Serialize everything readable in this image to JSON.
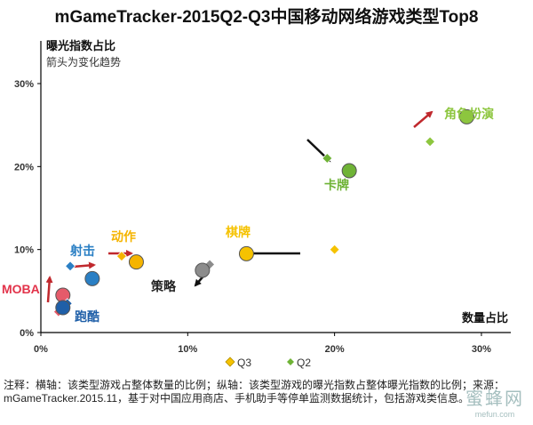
{
  "title": "mGameTracker-2015Q2-Q3中国移动网络游戏类型Top8",
  "note": "注释：横轴：该类型游戏占整体数量的比例；纵轴：该类型游戏的曝光指数占整体曝光指数的比例；来源：mGameTracker.2015.11，基于对中国应用商店、手机助手等停单监测数据统计，包括游戏类信息。",
  "watermark": {
    "main": "蜜蜂网",
    "sub": "mefun.com"
  },
  "chart_data": {
    "type": "scatter",
    "title": "mGameTracker-2015Q2-Q3中国移动网络游戏类型Top8",
    "ylabel": "曝光指数占比",
    "ylabel_sub": "箭头为变化趋势",
    "xlabel": "数量占比",
    "xlim": [
      0,
      32
    ],
    "ylim": [
      0,
      33
    ],
    "x_ticks": [
      0,
      10,
      20,
      30
    ],
    "y_ticks": [
      0,
      10,
      20,
      30
    ],
    "x_tick_labels": [
      "0%",
      "10%",
      "20%",
      "30%"
    ],
    "y_tick_labels": [
      "0%",
      "10%",
      "20%",
      "30%"
    ],
    "legend": [
      "Q3",
      "Q2"
    ],
    "legend_position": "bottom",
    "series": [
      {
        "name": "Q3",
        "marker": "circle",
        "points": [
          {
            "label": "角色扮演",
            "x": 29.0,
            "y": 26.0
          },
          {
            "label": "卡牌",
            "x": 21.0,
            "y": 19.5
          },
          {
            "label": "棋牌",
            "x": 14.0,
            "y": 9.5
          },
          {
            "label": "策略",
            "x": 11.0,
            "y": 7.5
          },
          {
            "label": "动作",
            "x": 6.5,
            "y": 8.5
          },
          {
            "label": "射击",
            "x": 3.5,
            "y": 6.5
          },
          {
            "label": "MOBA",
            "x": 1.5,
            "y": 4.5
          },
          {
            "label": "跑酷",
            "x": 1.5,
            "y": 3.0
          }
        ]
      },
      {
        "name": "Q2",
        "marker": "diamond",
        "points": [
          {
            "label": "角色扮演",
            "x": 26.5,
            "y": 23.0
          },
          {
            "label": "卡牌",
            "x": 19.5,
            "y": 21.0
          },
          {
            "label": "棋牌",
            "x": 20.0,
            "y": 10.0
          },
          {
            "label": "策略",
            "x": 11.5,
            "y": 8.2
          },
          {
            "label": "动作",
            "x": 5.5,
            "y": 9.2
          },
          {
            "label": "射击",
            "x": 2.0,
            "y": 8.0
          },
          {
            "label": "MOBA",
            "x": 1.2,
            "y": 2.5
          },
          {
            "label": "跑酷",
            "x": 1.8,
            "y": 3.5
          }
        ]
      }
    ],
    "categories": [
      {
        "name": "角色扮演",
        "color": "#8dc63f",
        "arrow": "#c0282d"
      },
      {
        "name": "卡牌",
        "color": "#6fb336",
        "arrow": "#111111"
      },
      {
        "name": "棋牌",
        "color": "#f5c200",
        "arrow": "#111111"
      },
      {
        "name": "策略",
        "color": "#8c8c8c",
        "arrow": "#111111"
      },
      {
        "name": "动作",
        "color": "#f5b400",
        "arrow": "#c0282d"
      },
      {
        "name": "射击",
        "color": "#2a7fc4",
        "arrow": "#c0282d"
      },
      {
        "name": "MOBA",
        "color": "#e55b6a",
        "arrow": "#c0282d"
      },
      {
        "name": "跑酷",
        "color": "#1f5fa8",
        "arrow": "#111111"
      }
    ]
  }
}
